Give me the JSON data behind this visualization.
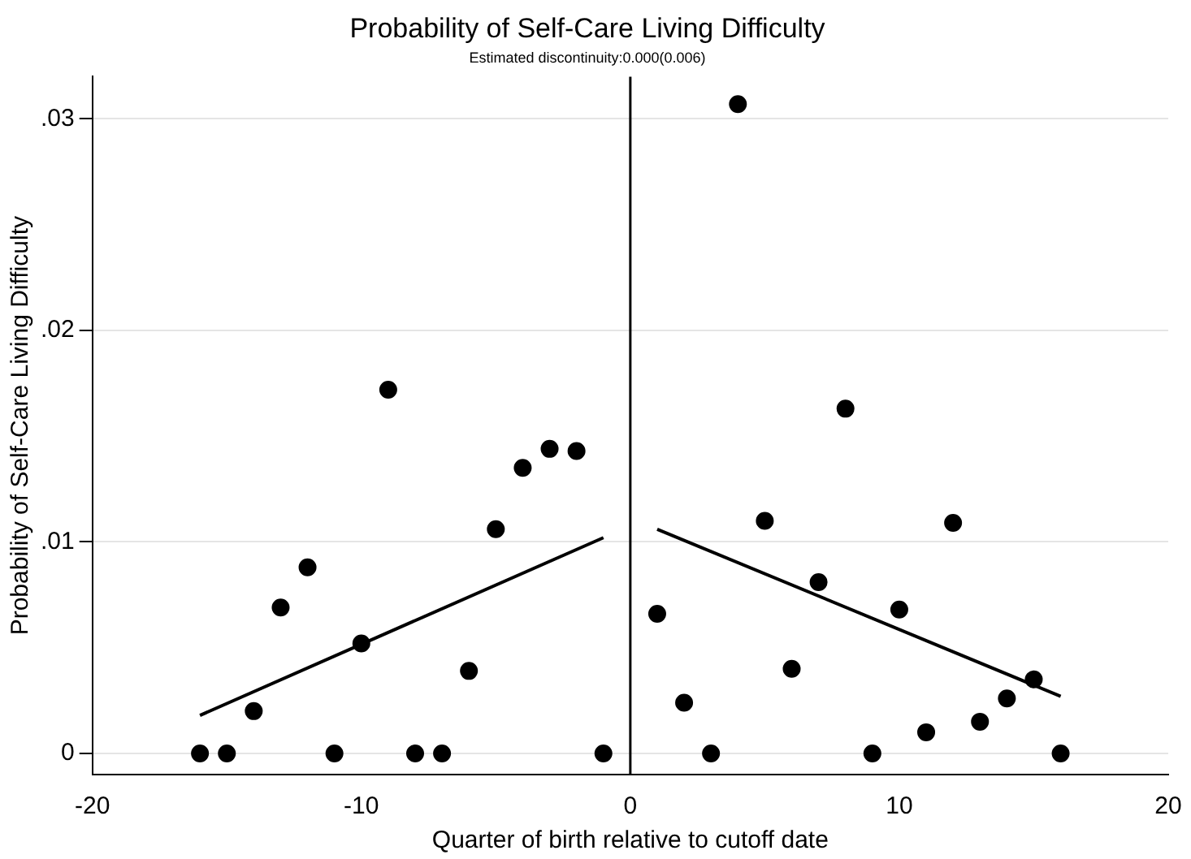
{
  "chart_data": {
    "type": "scatter",
    "title": "Probability of Self-Care Living Difficulty",
    "subtitle": "Estimated discontinuity:0.000(0.006)",
    "xlabel": "Quarter of birth relative to cutoff date",
    "ylabel": "Probability of Self-Care Living Difficulty",
    "xlim": [
      -20,
      20
    ],
    "xticks": [
      -20,
      -10,
      0,
      10,
      20
    ],
    "ylim": [
      -0.001,
      0.032
    ],
    "yticks": [
      0,
      {
        "value": 0.01,
        "label": ".01"
      },
      {
        "value": 0.02,
        "label": ".02"
      },
      {
        "value": 0.03,
        "label": ".03"
      }
    ],
    "grid": "y",
    "legend": false,
    "ref_lines": [
      {
        "axis": "x",
        "value": 0,
        "color": "#000000"
      }
    ],
    "series": [
      {
        "marker": "circle",
        "color": "#000000",
        "x": [
          -16,
          -15,
          -14,
          -13,
          -12,
          -11,
          -10,
          -9,
          -8,
          -7,
          -6,
          -5,
          -4,
          -3,
          -2,
          -1,
          1,
          2,
          3,
          4,
          5,
          6,
          7,
          8,
          9,
          10,
          11,
          12,
          13,
          14,
          15,
          16
        ],
        "values": [
          0,
          0,
          0.002,
          0.0069,
          0.0088,
          0,
          0.0052,
          0.0172,
          0,
          0,
          0.0039,
          0.0106,
          0.0135,
          0.0144,
          0.0143,
          0,
          0.0066,
          0.0024,
          0,
          0.0307,
          0.011,
          0.004,
          0.0081,
          0.0163,
          0,
          0.0068,
          0.001,
          0.0109,
          0.0015,
          0.0026,
          0.0035,
          0
        ]
      },
      {
        "type": "line",
        "color": "#000000",
        "x": [
          -16,
          -1
        ],
        "values": [
          0.0018,
          0.0102
        ]
      },
      {
        "type": "line",
        "color": "#000000",
        "x": [
          1,
          16
        ],
        "values": [
          0.0106,
          0.0027
        ]
      }
    ]
  }
}
